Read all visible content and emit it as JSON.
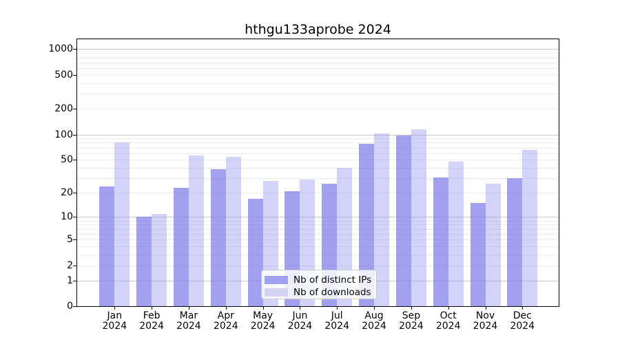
{
  "title": "hthgu133aprobe 2024",
  "chart_data": {
    "type": "bar",
    "title": "hthgu133aprobe 2024",
    "categories": [
      "Jan 2024",
      "Feb 2024",
      "Mar 2024",
      "Apr 2024",
      "May 2024",
      "Jun 2024",
      "Jul 2024",
      "Aug 2024",
      "Sep 2024",
      "Oct 2024",
      "Nov 2024",
      "Dec 2024"
    ],
    "series": [
      {
        "name": "Nb of distinct IPs",
        "values": [
          24,
          10,
          23,
          39,
          17,
          21,
          26,
          77,
          98,
          31,
          15,
          30
        ]
      },
      {
        "name": "Nb of downloads",
        "values": [
          80,
          11,
          56,
          54,
          28,
          29,
          40,
          102,
          116,
          48,
          26,
          66
        ]
      }
    ],
    "xlabel": "",
    "ylabel": "",
    "yscale": "log1p",
    "yticks": [
      0,
      1,
      2,
      5,
      10,
      20,
      50,
      100,
      200,
      500,
      1000
    ],
    "ylim": [
      0,
      1300
    ],
    "grid": true,
    "legend_position": "lower center"
  },
  "colors": {
    "bar_distinct_ips": "rgba(125,125,233,0.72)",
    "bar_downloads": "rgba(150,150,240,0.42)",
    "legend_swatch_distinct_ips": "#a1a1ef",
    "legend_swatch_downloads": "#d3d3f6",
    "grid_major": "#c6c6c6",
    "grid_minor": "#ececec",
    "axis": "#000000"
  }
}
